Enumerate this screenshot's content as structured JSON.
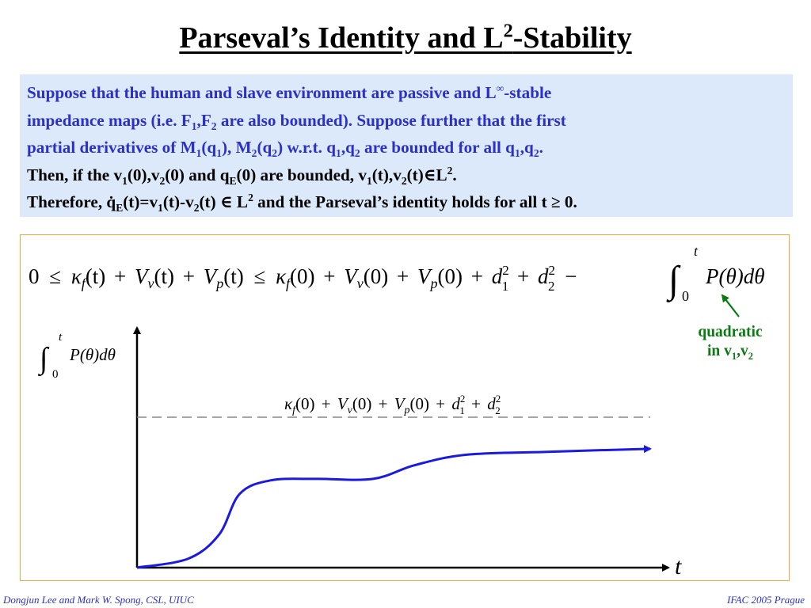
{
  "slide": {
    "title_main": "Parseval’s Identity and L",
    "title_sup": "2",
    "title_tail": "-Stability"
  },
  "statement": {
    "lines": [
      {
        "color": "blue",
        "segments": [
          {
            "t": "Suppose that the human and slave environment are passive and L"
          },
          {
            "t": "∞",
            "sup": true
          },
          {
            "t": "-stable"
          }
        ]
      },
      {
        "color": "blue",
        "segments": [
          {
            "t": "impedance maps (i.e. F"
          },
          {
            "t": "1",
            "sub": true
          },
          {
            "t": ",F"
          },
          {
            "t": "2",
            "sub": true
          },
          {
            "t": " are also bounded).  Suppose further that the first"
          }
        ]
      },
      {
        "color": "blue",
        "segments": [
          {
            "t": "partial derivatives of  M"
          },
          {
            "t": "1",
            "sub": true
          },
          {
            "t": "(q"
          },
          {
            "t": "1",
            "sub": true
          },
          {
            "t": "), M"
          },
          {
            "t": "2",
            "sub": true
          },
          {
            "t": "(q"
          },
          {
            "t": "2",
            "sub": true
          },
          {
            "t": ") w.r.t. q"
          },
          {
            "t": "1",
            "sub": true
          },
          {
            "t": ",q"
          },
          {
            "t": "2",
            "sub": true
          },
          {
            "t": " are bounded for all q"
          },
          {
            "t": "1",
            "sub": true
          },
          {
            "t": ",q"
          },
          {
            "t": "2",
            "sub": true
          },
          {
            "t": "."
          }
        ]
      },
      {
        "color": "black",
        "segments": [
          {
            "t": "Then, if  the v"
          },
          {
            "t": "1",
            "sub": true
          },
          {
            "t": "(0),v"
          },
          {
            "t": "2",
            "sub": true
          },
          {
            "t": "(0) and q"
          },
          {
            "t": "E",
            "sub": true
          },
          {
            "t": "(0) are bounded, v"
          },
          {
            "t": "1",
            "sub": true
          },
          {
            "t": "(t),v"
          },
          {
            "t": "2",
            "sub": true
          },
          {
            "t": "(t)∈L"
          },
          {
            "t": "2",
            "sup": true
          },
          {
            "t": "."
          }
        ]
      },
      {
        "color": "black",
        "segments": [
          {
            "t": "Therefore, q̇"
          },
          {
            "t": "E",
            "sub": true
          },
          {
            "t": "(t)=v"
          },
          {
            "t": "1",
            "sub": true
          },
          {
            "t": "(t)-v"
          },
          {
            "t": "2",
            "sub": true
          },
          {
            "t": "(t)  ∈  L"
          },
          {
            "t": "2",
            "sup": true
          },
          {
            "t": " and the Parseval’s identity holds for all t ≥ 0."
          }
        ]
      }
    ]
  },
  "figure": {
    "inequality": {
      "zero": "0",
      "le1": "≤",
      "kappa_t": "κ",
      "f_sub": "f",
      "paren_t": "(t)",
      "plus": "+",
      "V": "V",
      "v_sub": "v",
      "p_sub": "p",
      "le2": "≤",
      "paren_0": "(0)",
      "d": "d",
      "d1_sub": "1",
      "d2_sub": "2",
      "sq": "2",
      "minus": "−",
      "integral": "∫",
      "upper": "t",
      "lower": "0",
      "integrand": "P(θ)dθ"
    },
    "yaxis_label": {
      "integral": "∫",
      "upper": "t",
      "lower": "0",
      "integrand": "P(θ)dθ"
    },
    "bound_label": {
      "kappa": "κ",
      "f_sub": "f",
      "paren_0": "(0)",
      "plus": "+",
      "V": "V",
      "v_sub": "v",
      "p_sub": "p",
      "d": "d",
      "d1_sub": "1",
      "d2_sub": "2",
      "sq": "2"
    },
    "xaxis_label": "t",
    "annotation": {
      "line1": "quadratic",
      "line2_pre": "in v",
      "sub1": "1",
      "mid": ",v",
      "sub2": "2"
    },
    "curve_shape": [
      [
        0.0,
        0.0
      ],
      [
        0.1,
        0.06
      ],
      [
        0.16,
        0.22
      ],
      [
        0.2,
        0.49
      ],
      [
        0.26,
        0.58
      ],
      [
        0.35,
        0.59
      ],
      [
        0.46,
        0.59
      ],
      [
        0.54,
        0.68
      ],
      [
        0.64,
        0.75
      ],
      [
        0.8,
        0.77
      ],
      [
        1.0,
        0.79
      ]
    ],
    "bound_level": 1.0,
    "colors": {
      "curve": "#1a1ae0",
      "annotation": "#0a7a12",
      "box_border": "#f4a640",
      "dash": "#888888"
    }
  },
  "footer": {
    "left": "Dongjun Lee and Mark W. Spong, CSL, UIUC",
    "right": "IFAC 2005 Prague"
  }
}
